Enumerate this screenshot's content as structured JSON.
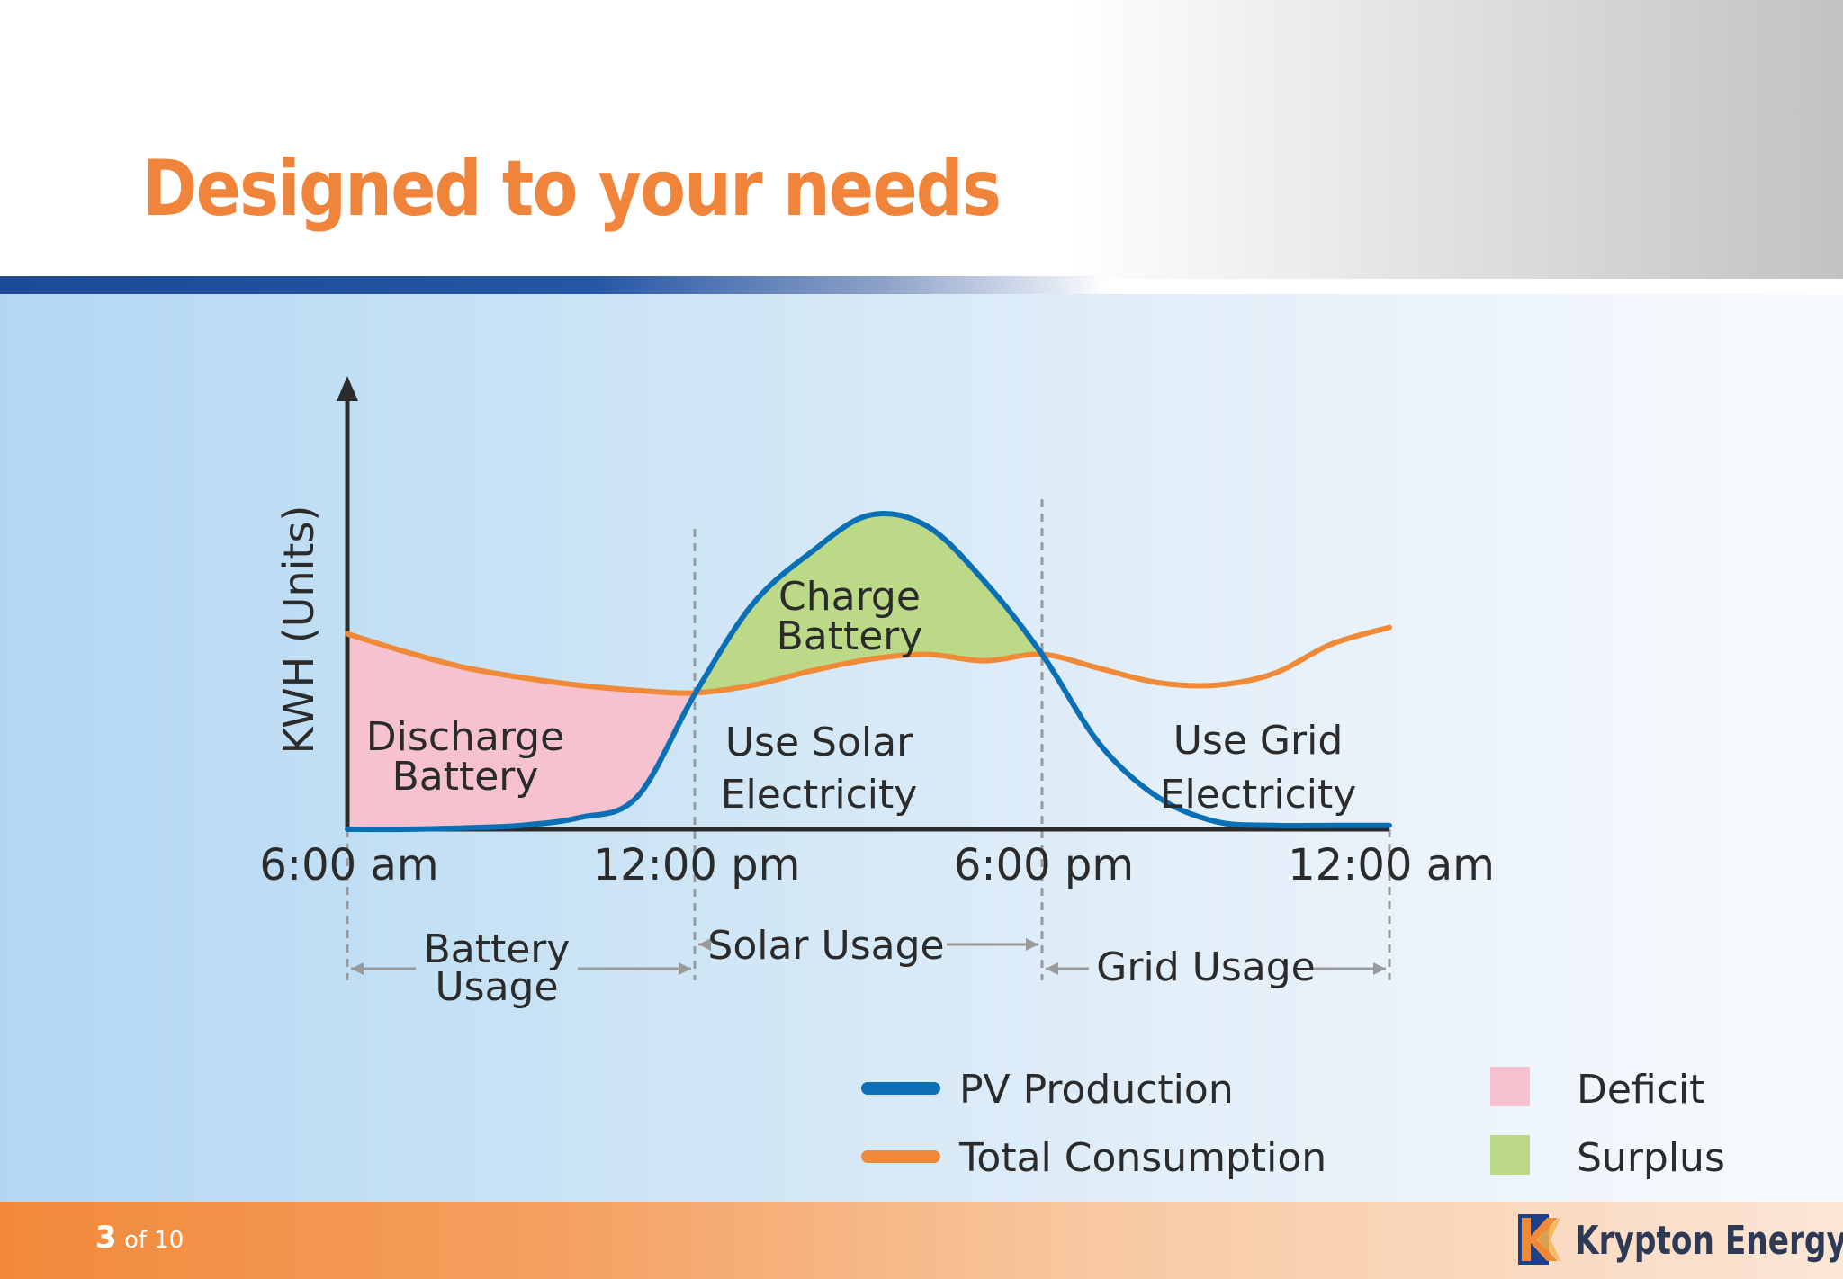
{
  "slide": {
    "title": "Designed to your needs",
    "page_current": "3",
    "page_of": "of 10",
    "brand": "Krypton Energy",
    "logo_icon": "krypton-energy-logo-icon"
  },
  "chart_data": {
    "type": "area",
    "title": "",
    "ylabel": "KWH (Units)",
    "xlabel": "",
    "x_tick_labels": [
      "6:00 am",
      "12:00 pm",
      "6:00 pm",
      "12:00 am"
    ],
    "x_hours": [
      6,
      12,
      18,
      24
    ],
    "grid": false,
    "legend_position": "bottom-right",
    "colors": {
      "pv": "#0b6fb5",
      "consumption": "#f08a38",
      "deficit": "#f7c2cf",
      "surplus": "#bcd987",
      "axis": "#2b2b2b",
      "divider": "#9a9a9a"
    },
    "series": [
      {
        "name": "PV Production",
        "x": [
          6,
          7,
          8,
          9,
          10,
          11,
          12,
          13,
          14,
          15,
          16,
          17,
          18,
          19,
          20,
          21,
          22,
          23,
          24
        ],
        "values": [
          0,
          0,
          0.1,
          0.3,
          0.9,
          2.5,
          10.5,
          17.5,
          21.5,
          24.4,
          23.6,
          19.3,
          13.6,
          6.6,
          2.5,
          0.6,
          0.3,
          0.3,
          0.3
        ]
      },
      {
        "name": "Total Consumption",
        "x": [
          6,
          7,
          8,
          9,
          10,
          11,
          12,
          13,
          14,
          15,
          16,
          17,
          18,
          19,
          20,
          21,
          22,
          23,
          24
        ],
        "values": [
          15.2,
          13.8,
          12.6,
          11.8,
          11.2,
          10.8,
          10.6,
          11.2,
          12.3,
          13.2,
          13.6,
          13.1,
          13.6,
          12.5,
          11.4,
          11.2,
          12.1,
          14.4,
          15.7
        ]
      }
    ],
    "areas": [
      {
        "name": "Deficit",
        "from_hour": 6,
        "to_hour": 12
      },
      {
        "name": "Surplus",
        "from_hour": 12,
        "to_hour": 18
      }
    ],
    "region_labels": [
      {
        "text_lines": [
          "Discharge",
          "Battery"
        ]
      },
      {
        "text_lines": [
          "Charge",
          "Battery"
        ]
      },
      {
        "text_lines": [
          "Use Solar",
          "Electricity"
        ]
      },
      {
        "text_lines": [
          "Use Grid",
          "Electricity"
        ]
      }
    ],
    "usage_spans": [
      {
        "text_lines": [
          "Battery",
          "Usage"
        ],
        "from_hour": 6,
        "to_hour": 12
      },
      {
        "text_lines": [
          "Solar Usage"
        ],
        "from_hour": 12,
        "to_hour": 18
      },
      {
        "text_lines": [
          "Grid Usage"
        ],
        "from_hour": 18,
        "to_hour": 24
      }
    ],
    "legend": [
      {
        "label": "PV Production",
        "kind": "line",
        "color": "#0b6fb5"
      },
      {
        "label": "Total Consumption",
        "kind": "line",
        "color": "#f08a38"
      },
      {
        "label": "Deficit",
        "kind": "swatch",
        "color": "#f7c2cf"
      },
      {
        "label": "Surplus",
        "kind": "swatch",
        "color": "#bcd987"
      }
    ]
  }
}
